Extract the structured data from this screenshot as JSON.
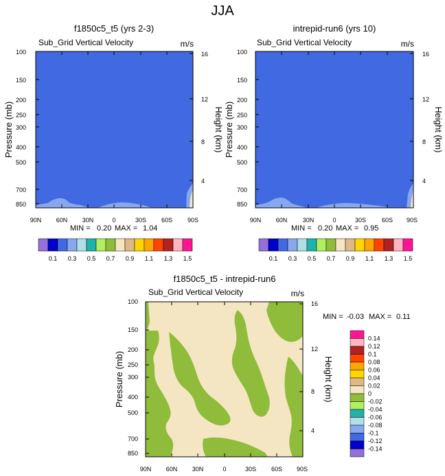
{
  "figure": {
    "title": "JJA"
  },
  "chart_data": [
    {
      "type": "heatmap",
      "title": "f1850c5_t5 (yrs 2-3)",
      "subtitle": "Sub_Grid Vertical Velocity",
      "units": "m/s",
      "xlabel": "",
      "ylabel": "Pressure (mb)",
      "ylabel_right": "Height (km)",
      "x_ticks": [
        "90N",
        "60N",
        "30N",
        "0",
        "30S",
        "60S",
        "90S"
      ],
      "y_ticks": [
        "100",
        "150",
        "200",
        "250",
        "300",
        "400",
        "500",
        "700",
        "850"
      ],
      "y_ticks_right": [
        "16",
        "12",
        "8",
        "4"
      ],
      "stats": {
        "min_label": "MIN =",
        "min": "0.20",
        "max_label": "MAX =",
        "max": "1.04"
      },
      "field_summary": {
        "dominant_value_range": [
          0.3,
          0.4
        ],
        "near_surface_value_range": [
          0.4,
          0.5
        ],
        "surface_90S_value_range": [
          0.9,
          1.1
        ]
      }
    },
    {
      "type": "heatmap",
      "title": "intrepid-run6 (yrs 10)",
      "subtitle": "Sub_Grid Vertical Velocity",
      "units": "m/s",
      "xlabel": "",
      "ylabel": "Pressure (mb)",
      "ylabel_right": "Height (km)",
      "x_ticks": [
        "90N",
        "60N",
        "30N",
        "0",
        "30S",
        "60S",
        "90S"
      ],
      "y_ticks": [
        "100",
        "150",
        "200",
        "250",
        "300",
        "400",
        "500",
        "700",
        "850"
      ],
      "y_ticks_right": [
        "16",
        "12",
        "8",
        "4"
      ],
      "stats": {
        "min_label": "MIN =",
        "min": "0.20",
        "max_label": "MAX =",
        "max": "0.95"
      },
      "field_summary": {
        "dominant_value_range": [
          0.3,
          0.4
        ],
        "near_surface_value_range": [
          0.4,
          0.5
        ],
        "surface_90S_value_range": [
          0.9,
          1.0
        ]
      }
    },
    {
      "type": "heatmap",
      "title": "f1850c5_t5 - intrepid-run6",
      "subtitle": "Sub_Grid Vertical Velocity",
      "units": "m/s",
      "xlabel": "",
      "ylabel": "Pressure (mb)",
      "ylabel_right": "Height (km)",
      "x_ticks": [
        "90N",
        "60N",
        "30N",
        "0",
        "30S",
        "60S",
        "90S"
      ],
      "y_ticks": [
        "100",
        "150",
        "200",
        "250",
        "300",
        "400",
        "500",
        "700",
        "850"
      ],
      "y_ticks_right": [
        "16",
        "12",
        "8",
        "4"
      ],
      "stats": {
        "min_label": "MIN =",
        "min": "-0.03",
        "max_label": "MAX =",
        "max": "0.11"
      },
      "field_summary": {
        "values_present": [
          -0.02,
          0,
          0.02
        ]
      }
    }
  ],
  "colorbar_abs": {
    "colors": [
      "#9370db",
      "#0000cd",
      "#4169e1",
      "#87a8ee",
      "#b0e0e6",
      "#20b2aa",
      "#b0f060",
      "#8fbc3a",
      "#f5e6c3",
      "#deb887",
      "#ffd700",
      "#ffa500",
      "#ff4500",
      "#b22222",
      "#ffb6c1",
      "#ff1493"
    ],
    "labels": [
      "0.1",
      "0.3",
      "0.5",
      "0.7",
      "0.9",
      "1.1",
      "1.3",
      "1.5"
    ]
  },
  "colorbar_diff": {
    "colors": [
      "#9370db",
      "#0000cd",
      "#4169e1",
      "#87a8ee",
      "#b0e0e6",
      "#20b2aa",
      "#b0f060",
      "#8fbc3a",
      "#f5e6c3",
      "#deb887",
      "#ffd700",
      "#ffa500",
      "#ff4500",
      "#b22222",
      "#ffb6c1",
      "#ff1493"
    ],
    "labels": [
      "-0.14",
      "-0.12",
      "-0.1",
      "-0.08",
      "-0.06",
      "-0.04",
      "-0.02",
      "0",
      "0.02",
      "0.04",
      "0.06",
      "0.08",
      "0.1",
      "0.12",
      "0.14"
    ]
  }
}
